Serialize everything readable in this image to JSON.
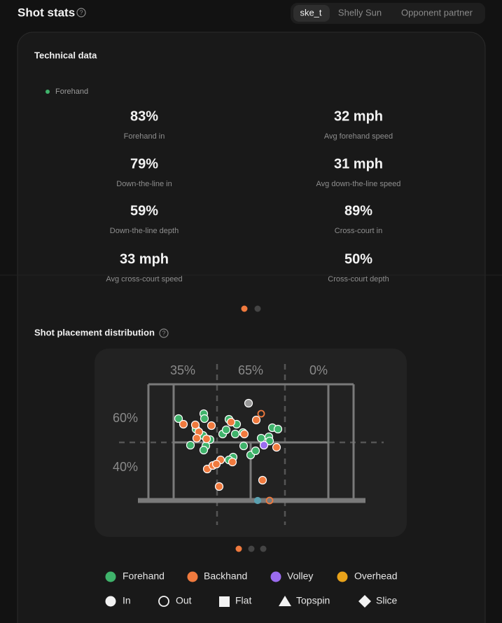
{
  "header": {
    "title": "Shot stats",
    "tabs": [
      "ske_t",
      "Shelly Sun",
      "Opponent partner"
    ]
  },
  "technical_data": {
    "title": "Technical data",
    "legend": "Forehand",
    "stats": [
      {
        "value": "83%",
        "label": "Forehand in"
      },
      {
        "value": "32 mph",
        "label": "Avg forehand speed"
      },
      {
        "value": "79%",
        "label": "Down-the-line in"
      },
      {
        "value": "31 mph",
        "label": "Avg down-the-line speed"
      },
      {
        "value": "59%",
        "label": "Down-the-line depth"
      },
      {
        "value": "89%",
        "label": "Cross-court in"
      },
      {
        "value": "33 mph",
        "label": "Avg cross-court speed"
      },
      {
        "value": "50%",
        "label": "Cross-court depth"
      }
    ]
  },
  "placement": {
    "title": "Shot placement distribution",
    "column_percents": [
      "35%",
      "65%",
      "0%"
    ],
    "row_percents": [
      "60%",
      "40%"
    ],
    "shot_types": [
      {
        "name": "Forehand",
        "color": "#3fb36b"
      },
      {
        "name": "Backhand",
        "color": "#f07a3e"
      },
      {
        "name": "Volley",
        "color": "#9b6bef"
      },
      {
        "name": "Overhead",
        "color": "#e8a21a"
      }
    ],
    "markers": [
      "In",
      "Out",
      "Flat",
      "Topspin",
      "Slice"
    ]
  }
}
